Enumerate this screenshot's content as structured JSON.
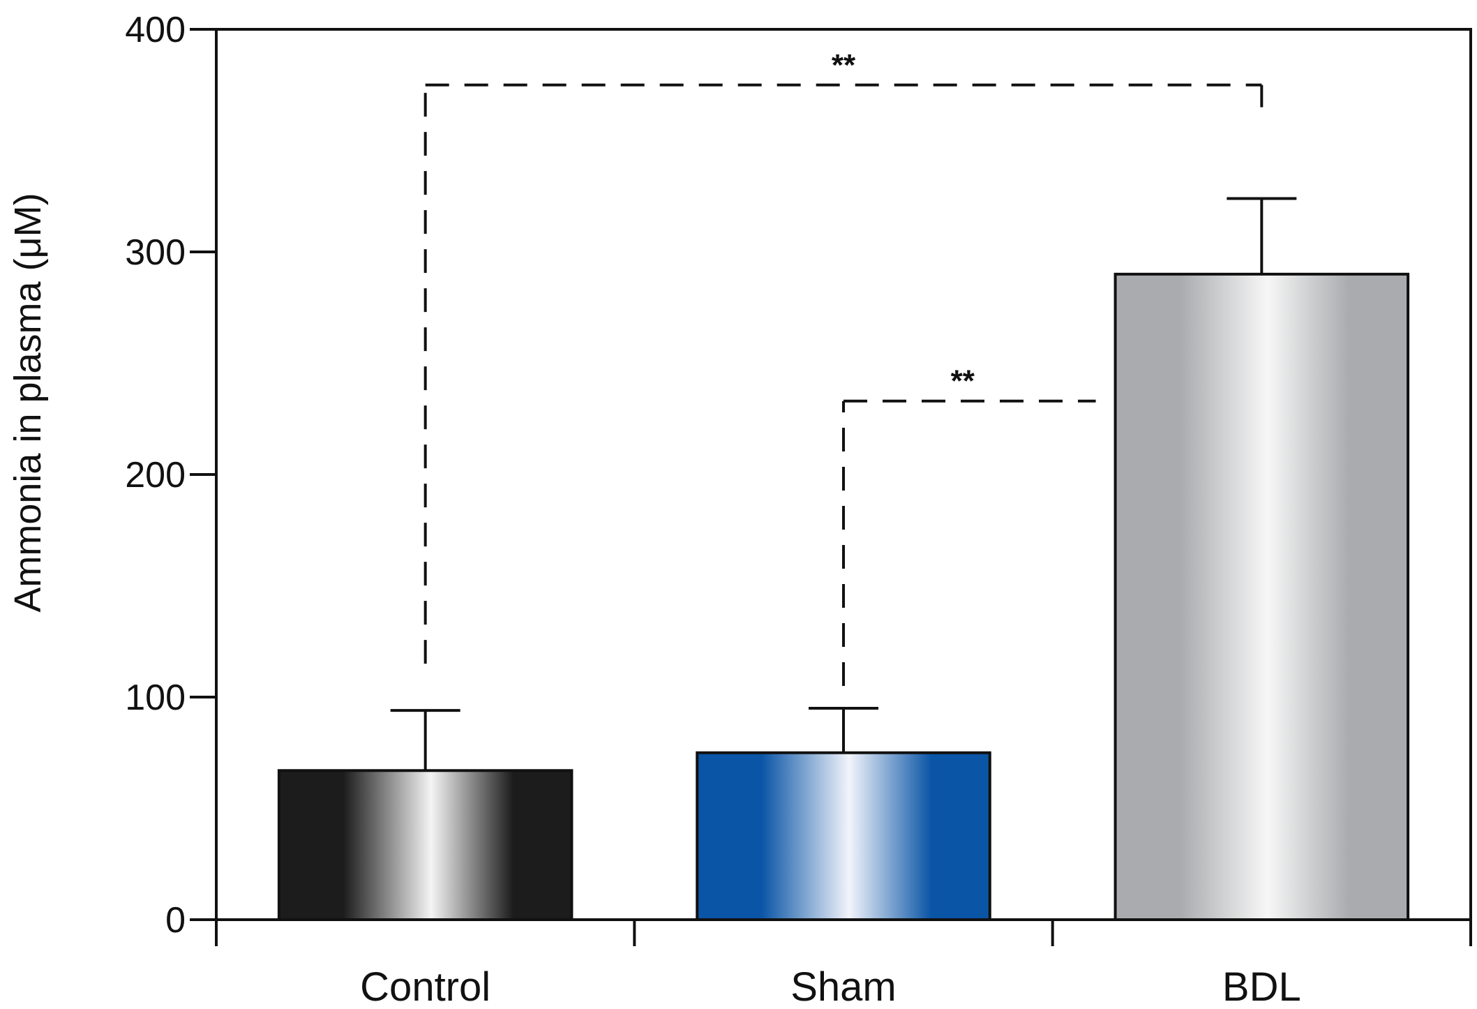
{
  "chart_data": {
    "type": "bar",
    "title": "",
    "xlabel": "",
    "ylabel": "Ammonia in plasma (μM)",
    "ylim": [
      0,
      400
    ],
    "yticks": [
      0,
      100,
      200,
      300,
      400
    ],
    "categories": [
      "Control",
      "Sham",
      "BDL"
    ],
    "values": [
      67,
      75,
      290
    ],
    "errors": [
      27,
      20,
      34
    ],
    "bar_colors": [
      {
        "edge": "#1c1c1c",
        "highlight": "#f4f4f4"
      },
      {
        "edge": "#0a55a5",
        "highlight": "#f2f4fb"
      },
      {
        "edge": "#a9abae",
        "highlight": "#f7f7f7"
      }
    ],
    "grid": false,
    "legend": "none",
    "significance": [
      {
        "from": 0,
        "to": 2,
        "y": 375,
        "from_y": 115,
        "to_y": 365,
        "label": "**"
      },
      {
        "from": 1,
        "to": 2,
        "y": 233,
        "from_y": 105,
        "to_y": 233,
        "label": "**"
      }
    ]
  }
}
